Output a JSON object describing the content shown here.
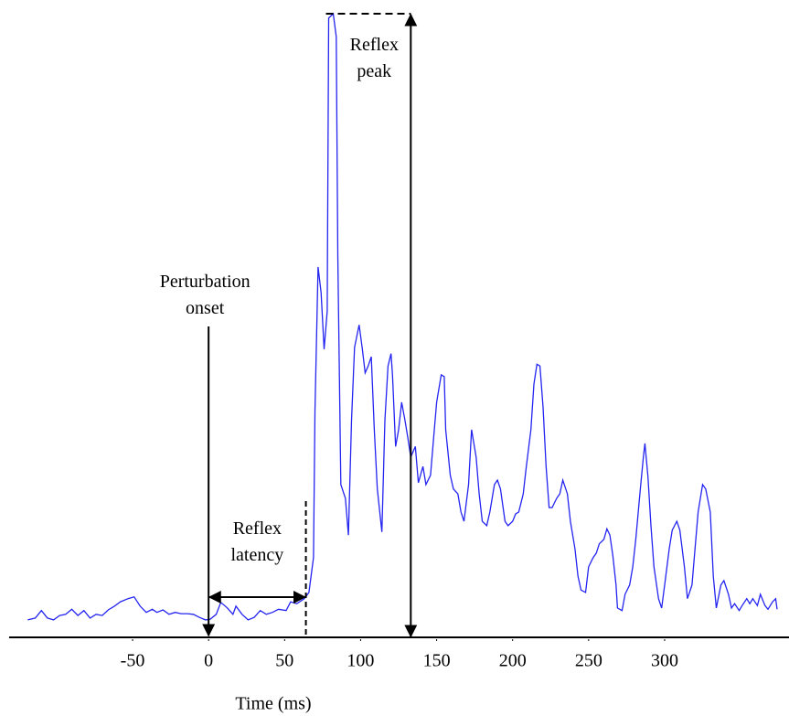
{
  "chart_data": {
    "type": "line",
    "xlabel": "Time (ms)",
    "xlim": [
      -130,
      380
    ],
    "xticks": [
      -50,
      0,
      50,
      100,
      150,
      200,
      250,
      300
    ],
    "ylim": [
      0,
      100
    ],
    "grid": false,
    "annotations": [
      {
        "text": "Perturbation onset",
        "x": 0
      },
      {
        "text": "Reflex latency",
        "x": [
          0,
          64
        ]
      },
      {
        "text": "Reflex peak",
        "x": 133
      }
    ],
    "series": [
      {
        "color": "#2424f0",
        "x": [
          -119,
          -114,
          -110,
          -106,
          -102,
          -98,
          -94,
          -90,
          -86,
          -82,
          -78,
          -74,
          -70,
          -66,
          -62,
          -58,
          -53,
          -49,
          -45,
          -41,
          -37,
          -34,
          -30,
          -26,
          -22,
          -18,
          -14,
          -10,
          -6,
          -2,
          1,
          5,
          8,
          12,
          16,
          18,
          22,
          26,
          30,
          34,
          38,
          42,
          46,
          51,
          54,
          58,
          63,
          66,
          69,
          70,
          72,
          74,
          76,
          78,
          79,
          82,
          84,
          85,
          87,
          90,
          92,
          94,
          96,
          99,
          101,
          103,
          105,
          107,
          109,
          111,
          114,
          116,
          118,
          120,
          121,
          123,
          125,
          127,
          129,
          131,
          133,
          136,
          138,
          141,
          143,
          146,
          148,
          150,
          153,
          155,
          156,
          159,
          161,
          164,
          166,
          168,
          171,
          173,
          176,
          178,
          180,
          183,
          185,
          188,
          190,
          192,
          195,
          197,
          200,
          202,
          204,
          207,
          209,
          212,
          214,
          216,
          218,
          220,
          222,
          224,
          226,
          229,
          231,
          233,
          236,
          238,
          241,
          243,
          245,
          248,
          250,
          253,
          255,
          257,
          260,
          262,
          264,
          266,
          268,
          269,
          272,
          274,
          277,
          279,
          281,
          284,
          286,
          287,
          289,
          291,
          293,
          296,
          298,
          300,
          303,
          305,
          308,
          310,
          313,
          315,
          318,
          320,
          322,
          325,
          327,
          330,
          332,
          334,
          337,
          339,
          342,
          344,
          346,
          349,
          351,
          354,
          356,
          358,
          361,
          363,
          366,
          368,
          371,
          373,
          374
        ],
        "values": [
          2.8,
          3.1,
          4.3,
          3.1,
          2.8,
          3.5,
          3.7,
          4.5,
          3.5,
          4.3,
          3.1,
          3.7,
          3.5,
          4.4,
          5.0,
          5.7,
          6.2,
          6.5,
          5.0,
          4.0,
          4.5,
          4.0,
          4.4,
          3.7,
          4.0,
          3.8,
          3.8,
          3.7,
          3.2,
          2.8,
          2.9,
          3.7,
          5.6,
          4.8,
          3.7,
          5.0,
          3.7,
          2.8,
          3.2,
          4.3,
          3.7,
          4.0,
          4.5,
          4.3,
          5.7,
          5.4,
          6.2,
          7.2,
          12.8,
          36.2,
          59.4,
          55.3,
          46.2,
          52.3,
          99.3,
          100,
          96.3,
          61.1,
          24.5,
          22.3,
          16.4,
          34.8,
          46.5,
          50.1,
          46.5,
          42.4,
          43.5,
          45.0,
          33.3,
          23.8,
          16.9,
          34.8,
          43.5,
          45.5,
          42.1,
          30.6,
          33.3,
          37.7,
          35.0,
          32.1,
          28.9,
          30.6,
          24.8,
          27.4,
          24.5,
          26.0,
          31.8,
          37.7,
          42.1,
          41.8,
          33.3,
          26.0,
          23.8,
          23.0,
          20.1,
          18.6,
          24.5,
          33.3,
          28.9,
          23.0,
          18.6,
          17.9,
          20.1,
          24.5,
          25.2,
          23.8,
          18.6,
          17.9,
          18.6,
          19.8,
          20.1,
          23.0,
          27.4,
          33.3,
          40.6,
          43.8,
          43.5,
          36.9,
          27.4,
          20.8,
          20.8,
          22.3,
          23.0,
          25.2,
          23.0,
          18.6,
          14.2,
          9.8,
          7.6,
          7.2,
          11.3,
          12.8,
          13.5,
          15.0,
          15.7,
          17.4,
          16.4,
          13.0,
          8.4,
          4.7,
          4.3,
          6.9,
          8.4,
          11.3,
          15.7,
          23.8,
          28.9,
          31.1,
          25.8,
          17.9,
          11.3,
          6.2,
          4.7,
          8.4,
          14.2,
          17.2,
          18.6,
          17.2,
          11.3,
          6.2,
          8.4,
          14.2,
          20.1,
          24.5,
          23.8,
          20.1,
          9.8,
          4.7,
          8.4,
          9.1,
          6.9,
          4.7,
          5.4,
          4.3,
          5.1,
          6.2,
          5.4,
          6.2,
          5.1,
          6.9,
          5.1,
          4.5,
          5.7,
          6.2,
          4.5
        ]
      }
    ]
  }
}
